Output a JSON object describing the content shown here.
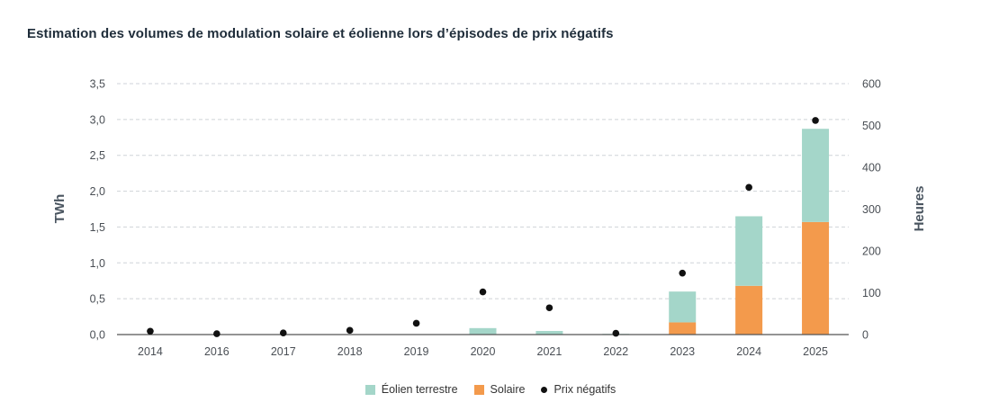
{
  "title": "Estimation des volumes de modulation solaire et éolienne lors d’épisodes de prix négatifs",
  "colors": {
    "eolien": "#a4d6c9",
    "solaire": "#f39a4c",
    "prix": "#111111"
  },
  "chart_data": {
    "type": "bar",
    "stacked": true,
    "categories": [
      "2014",
      "2016",
      "2017",
      "2018",
      "2019",
      "2020",
      "2021",
      "2022",
      "2023",
      "2024",
      "2025"
    ],
    "series": [
      {
        "name": "Solaire",
        "axis": "left",
        "values": [
          0,
          0,
          0,
          0,
          0,
          0,
          0,
          0,
          0.17,
          0.68,
          1.57
        ]
      },
      {
        "name": "Éolien terrestre",
        "axis": "left",
        "values": [
          0,
          0,
          0,
          0,
          0,
          0.09,
          0.05,
          0.01,
          0.43,
          0.97,
          1.3
        ]
      },
      {
        "name": "Prix négatifs",
        "axis": "right",
        "type": "scatter",
        "values": [
          8,
          2,
          4,
          10,
          27,
          102,
          64,
          3,
          147,
          352,
          512
        ]
      }
    ],
    "ylabel": "TWh",
    "ylim": [
      0,
      3.5
    ],
    "yticks": [
      "0,0",
      "0,5",
      "1,0",
      "1,5",
      "2,0",
      "2,5",
      "3,0",
      "3,5"
    ],
    "y2label": "Heures",
    "y2lim": [
      0,
      600
    ],
    "y2ticks": [
      "0",
      "100",
      "200",
      "300",
      "400",
      "500",
      "600"
    ],
    "grid": true,
    "legend_position": "bottom"
  }
}
